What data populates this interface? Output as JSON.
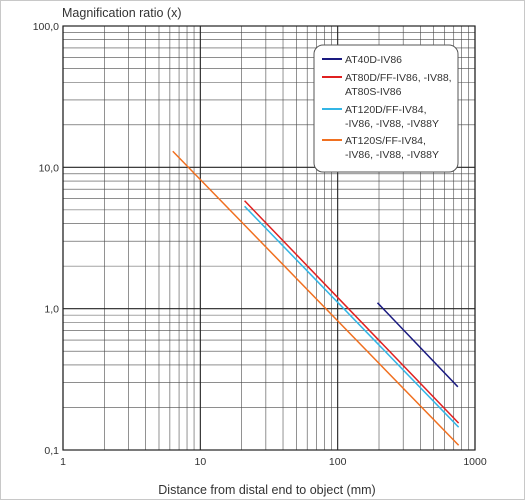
{
  "chart_data": {
    "type": "line",
    "ylabel": "Magnification ratio (x)",
    "xlabel": "Distance from distal end to object (mm)",
    "xscale": "log",
    "yscale": "log",
    "xlim": [
      1,
      1000
    ],
    "ylim": [
      0.1,
      100
    ],
    "x_ticks": [
      1,
      10,
      100,
      1000
    ],
    "x_tick_labels": [
      "1",
      "10",
      "100",
      "1000"
    ],
    "y_ticks": [
      0.1,
      1,
      10,
      100
    ],
    "y_tick_labels": [
      "0,1",
      "1,0",
      "10,0",
      "100,0"
    ],
    "grid": true,
    "legend_position": "top-right",
    "series": [
      {
        "name": "AT40D-IV86",
        "name_lines": [
          "AT40D-IV86"
        ],
        "color": "#1a1a80",
        "x": [
          195,
          750
        ],
        "y": [
          1.1,
          0.28
        ]
      },
      {
        "name": "AT80D/FF-IV86, -IV88, AT80S-IV86",
        "name_lines": [
          "AT80D/FF-IV86, -IV88,",
          "AT80S-IV86"
        ],
        "color": "#e02020",
        "x": [
          21,
          760
        ],
        "y": [
          5.8,
          0.155
        ]
      },
      {
        "name": "AT120D/FF-IV84, -IV86, -IV88, -IV88Y",
        "name_lines": [
          "AT120D/FF-IV84,",
          "-IV86, -IV88, -IV88Y"
        ],
        "color": "#33b5e5",
        "x": [
          21,
          760
        ],
        "y": [
          5.3,
          0.145
        ]
      },
      {
        "name": "AT120S/FF-IV84, -IV86, -IV88, -IV88Y",
        "name_lines": [
          "AT120S/FF-IV84,",
          "-IV86, -IV88, -IV88Y"
        ],
        "color": "#f07020",
        "x": [
          6.3,
          760
        ],
        "y": [
          13,
          0.108
        ]
      }
    ]
  }
}
